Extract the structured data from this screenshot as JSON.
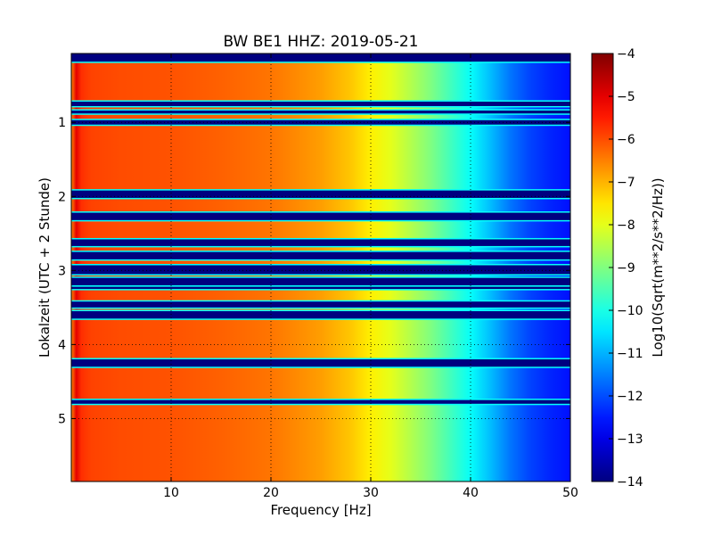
{
  "chart_data": {
    "type": "heatmap",
    "title": "BW BE1 HHZ: 2019-05-21",
    "xlabel": "Frequency [Hz]",
    "ylabel": "Lokalzeit (UTC + 2 Stunde)",
    "colorbar_label": "Log10(Sqrt(m**2/s**2/Hz))",
    "colormap": "jet",
    "xlim": [
      0,
      50
    ],
    "ylim": [
      0.07,
      5.85
    ],
    "y_inverted": true,
    "grid": true,
    "grid_style": "dotted",
    "x_ticks": [
      10,
      20,
      30,
      40,
      50
    ],
    "x_tick_labels": [
      "10",
      "20",
      "30",
      "40",
      "50"
    ],
    "y_ticks": [
      1,
      2,
      3,
      4,
      5
    ],
    "y_tick_labels": [
      "1",
      "2",
      "3",
      "4",
      "5"
    ],
    "colorbar_range": [
      -14,
      -4
    ],
    "colorbar_ticks": [
      -4,
      -5,
      -6,
      -7,
      -8,
      -9,
      -10,
      -11,
      -12,
      -13,
      -14
    ],
    "colorbar_tick_labels": [
      "−4",
      "−5",
      "−6",
      "−7",
      "−8",
      "−9",
      "−10",
      "−11",
      "−12",
      "−13",
      "−14"
    ],
    "spectrum_profile": {
      "frequency_hz": [
        0,
        0.5,
        1,
        2,
        5,
        10,
        15,
        20,
        25,
        28,
        30,
        32,
        34,
        36,
        38,
        40,
        42,
        44,
        46,
        48,
        50
      ],
      "log10_psd": [
        -6.6,
        -5.0,
        -5.7,
        -5.9,
        -6.0,
        -6.05,
        -6.2,
        -6.4,
        -6.8,
        -7.2,
        -7.6,
        -8.0,
        -8.5,
        -9.0,
        -9.6,
        -10.2,
        -10.9,
        -11.6,
        -12.1,
        -12.4,
        -12.6
      ]
    },
    "gaps": [
      {
        "start_h": 0.07,
        "end_h": 0.18
      },
      {
        "start_h": 0.72,
        "end_h": 0.78
      },
      {
        "start_h": 0.84,
        "end_h": 0.88
      },
      {
        "start_h": 0.97,
        "end_h": 1.03
      },
      {
        "start_h": 1.92,
        "end_h": 2.02
      },
      {
        "start_h": 2.22,
        "end_h": 2.32
      },
      {
        "start_h": 2.58,
        "end_h": 2.67
      },
      {
        "start_h": 2.75,
        "end_h": 2.85
      },
      {
        "start_h": 2.93,
        "end_h": 3.05
      },
      {
        "start_h": 3.1,
        "end_h": 3.2
      },
      {
        "start_h": 3.22,
        "end_h": 3.25
      },
      {
        "start_h": 3.42,
        "end_h": 3.5
      },
      {
        "start_h": 3.55,
        "end_h": 3.65
      },
      {
        "start_h": 4.2,
        "end_h": 4.3
      },
      {
        "start_h": 4.75,
        "end_h": 4.8
      }
    ],
    "gap_value": -14,
    "gap_edge_value": -10.2
  }
}
